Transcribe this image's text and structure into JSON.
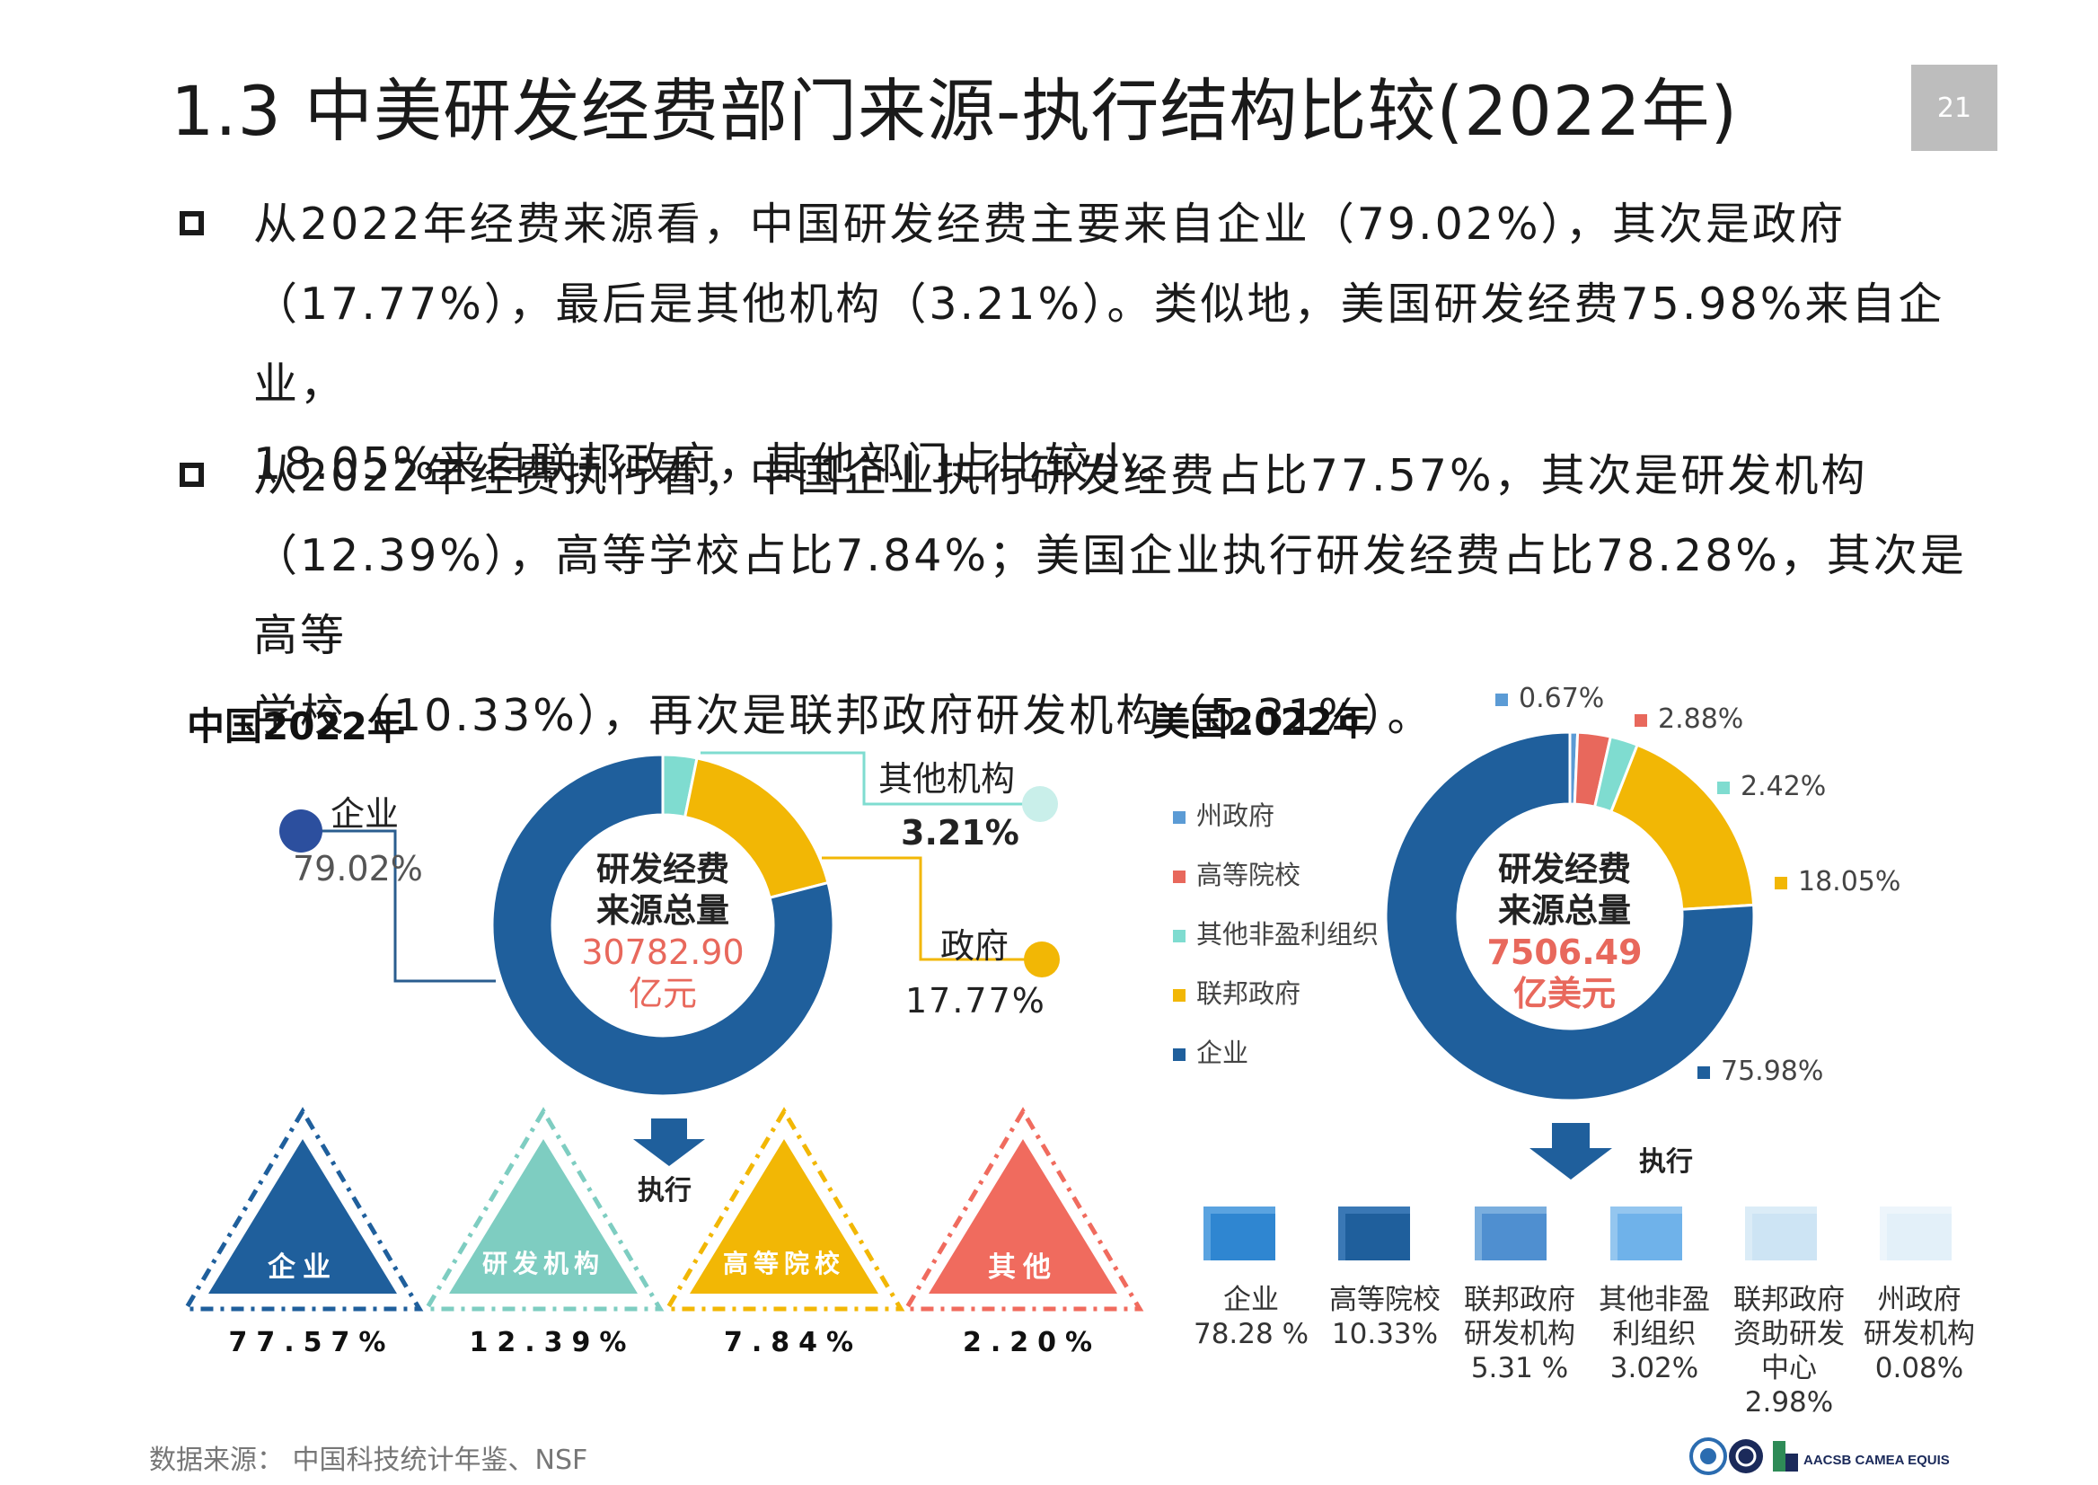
{
  "title": "1.3  中美研发经费部门来源-执行结构比较(2022年)",
  "page_number": "21",
  "paragraphs": [
    {
      "line1": "从2022年经费来源看，中国研发经费主要来自企业（79.02%），其次是政府",
      "line2": "（17.77%），最后是其他机构（3.21%）。类似地，美国研发经费75.98%来自企业，",
      "line3": "18.05%来自联邦政府，其他部门占比较小。"
    },
    {
      "line1": "从2022年经费执行看，中国企业执行研发经费占比77.57%，其次是研发机构",
      "line2": "（12.39%），高等学校占比7.84%；美国企业执行研发经费占比78.28%，其次是高等",
      "line3": "学校（10.33%），再次是联邦政府研发机构（5.31%）。"
    }
  ],
  "china": {
    "heading": "中国2022年",
    "center_line1": "研发经费",
    "center_line2": "来源总量",
    "center_value": "30782.90",
    "center_unit": "亿元",
    "labels": {
      "enterprise": "企业",
      "enterprise_pct": "79.02%",
      "other": "其他机构",
      "other_pct": "3.21%",
      "gov": "政府",
      "gov_pct": "17.77%"
    },
    "execute_label": "执行",
    "triangles": [
      {
        "label": "企业",
        "pct": "77.57%",
        "color": "#1f5f9c"
      },
      {
        "label": "研发机构",
        "pct": "12.39%",
        "color": "#7ecdc1"
      },
      {
        "label": "高等院校",
        "pct": "7.84%",
        "color": "#f2b705"
      },
      {
        "label": "其他",
        "pct": "2.20%",
        "color": "#f06b5e"
      }
    ]
  },
  "usa": {
    "heading": "美国2022年",
    "center_line1": "研发经费",
    "center_line2": "来源总量",
    "center_value": "7506.49",
    "center_unit": "亿美元",
    "legend": [
      {
        "label": "州政府",
        "color": "#5b9bd5"
      },
      {
        "label": "高等院校",
        "color": "#e8685c"
      },
      {
        "label": "其他非盈利组织",
        "color": "#7fdcd0"
      },
      {
        "label": "联邦政府",
        "color": "#f2b705"
      },
      {
        "label": "企业",
        "color": "#1f5f9c"
      }
    ],
    "pct_labels": {
      "state": "0.67%",
      "univ": "2.88%",
      "nonprofit": "2.42%",
      "federal": "18.05%",
      "enterprise": "75.98%"
    },
    "execute_label": "执行",
    "exec_items": [
      {
        "line1": "企业",
        "line2": "78.28 %",
        "line3": "",
        "line4": ""
      },
      {
        "line1": "高等院校",
        "line2": "10.33%",
        "line3": "",
        "line4": ""
      },
      {
        "line1": "联邦政府",
        "line2": "研发机构",
        "line3": "5.31 %",
        "line4": ""
      },
      {
        "line1": "其他非盈",
        "line2": "利组织",
        "line3": "3.02%",
        "line4": ""
      },
      {
        "line1": "联邦政府",
        "line2": "资助研发",
        "line3": "中心",
        "line4": "2.98%"
      },
      {
        "line1": "州政府",
        "line2": "研发机构",
        "line3": "0.08%",
        "line4": ""
      }
    ]
  },
  "source": "数据来源：  中国科技统计年鉴、NSF",
  "logos_text": "AACSB  CAMEA  EQUIS",
  "chart_data": [
    {
      "type": "pie",
      "title": "中国2022年 研发经费来源",
      "categories": [
        "企业",
        "政府",
        "其他机构"
      ],
      "values": [
        79.02,
        17.77,
        3.21
      ],
      "colors": [
        "#1f5f9c",
        "#f2b705",
        "#7fdcd0"
      ],
      "total": "30782.90亿元"
    },
    {
      "type": "pie",
      "title": "美国2022年 研发经费来源",
      "categories": [
        "州政府",
        "高等院校",
        "其他非盈利组织",
        "联邦政府",
        "企业"
      ],
      "values": [
        0.67,
        2.88,
        2.42,
        18.05,
        75.98
      ],
      "colors": [
        "#5b9bd5",
        "#e8685c",
        "#7fdcd0",
        "#f2b705",
        "#1f5f9c"
      ],
      "total": "7506.49亿美元"
    },
    {
      "type": "table",
      "title": "中国2022年 研发经费执行",
      "categories": [
        "企业",
        "研发机构",
        "高等院校",
        "其他"
      ],
      "values": [
        77.57,
        12.39,
        7.84,
        2.2
      ]
    },
    {
      "type": "table",
      "title": "美国2022年 研发经费执行",
      "categories": [
        "企业",
        "高等院校",
        "联邦政府研发机构",
        "其他非盈利组织",
        "联邦政府资助研发中心",
        "州政府研发机构"
      ],
      "values": [
        78.28,
        10.33,
        5.31,
        3.02,
        2.98,
        0.08
      ]
    }
  ]
}
